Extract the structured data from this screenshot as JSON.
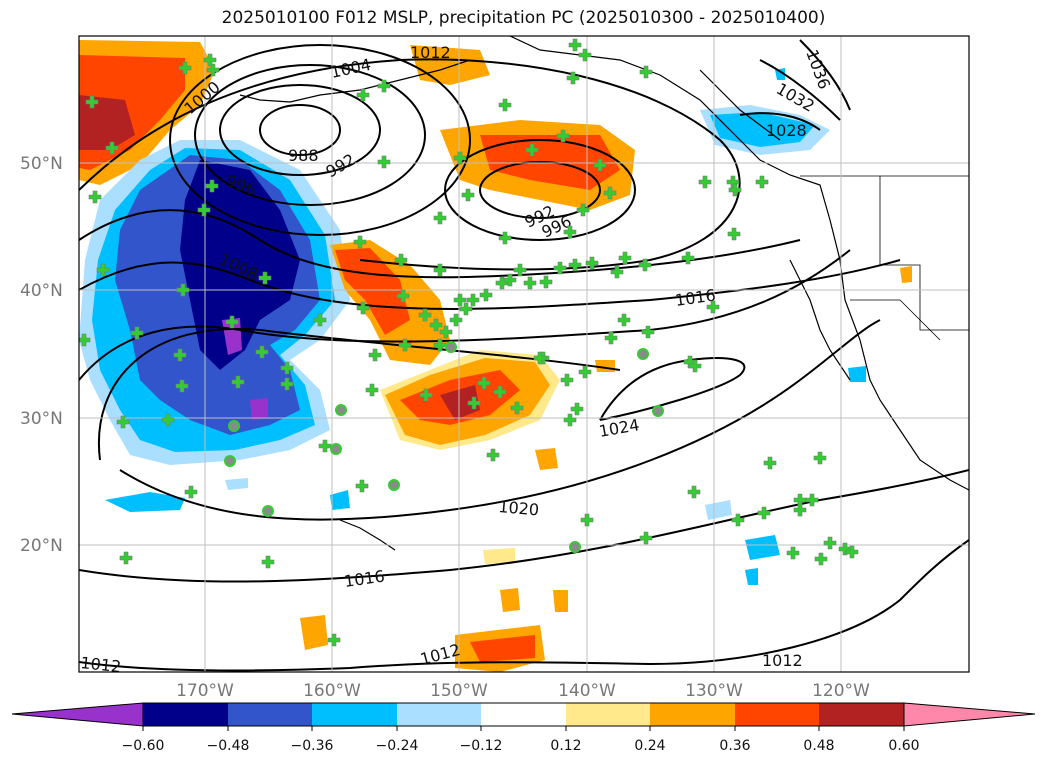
{
  "title": "2025010100 F012 MSLP, precipitation PC (2025010300 - 2025010400)",
  "map": {
    "lat_labels": [
      "50°N",
      "40°N",
      "30°N",
      "20°N"
    ],
    "lon_labels": [
      "170°W",
      "160°W",
      "150°W",
      "140°W",
      "130°W",
      "120°W"
    ],
    "isobar_labels": [
      "1012",
      "1004",
      "1000",
      "988",
      "992",
      "996",
      "1008",
      "992",
      "996",
      "1016",
      "1024",
      "1020",
      "1016",
      "1012",
      "1012",
      "1012",
      "1036",
      "1032",
      "1028"
    ],
    "colors": {
      "frame": "#000000",
      "grid": "#bfbfbf",
      "isobar": "#000000",
      "marker_plus": "#33cc33",
      "marker_circle": "#33cc33"
    }
  },
  "colorbar": {
    "ticks": [
      "−0.60",
      "−0.48",
      "−0.36",
      "−0.24",
      "−0.12",
      "0.12",
      "0.24",
      "0.36",
      "0.48",
      "0.60"
    ],
    "colors": [
      "#9932cc",
      "#00008b",
      "#3355cc",
      "#00bfff",
      "#aadfff",
      "#ffffff",
      "#ffe98a",
      "#ffa500",
      "#ff4500",
      "#b22222",
      "#ff88aa"
    ]
  }
}
